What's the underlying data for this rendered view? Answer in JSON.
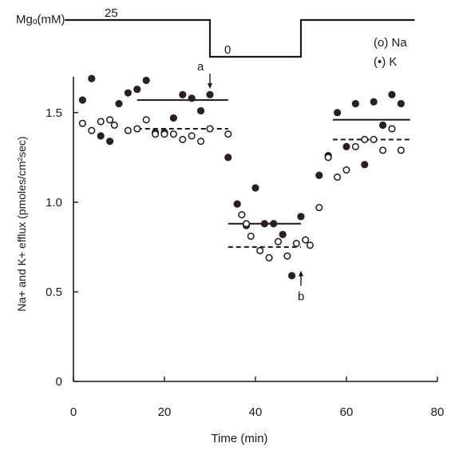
{
  "chart_data": {
    "type": "scatter",
    "title": "",
    "xlabel": "Time (min)",
    "ylabel": "Na+ and K+ efflux (pmoles/cm²sec)",
    "xlim": [
      0,
      80
    ],
    "ylim": [
      0,
      1.7
    ],
    "x_ticks": [
      0,
      20,
      40,
      60,
      80
    ],
    "y_ticks": [
      0,
      0.5,
      1.0,
      1.5
    ],
    "x_tick_labels": [
      "0",
      "20",
      "40",
      "60",
      "80"
    ],
    "y_tick_labels": [
      "0",
      "0.5",
      "1.0",
      "1.5"
    ],
    "grid": false,
    "legend_position": "top-right",
    "legend": [
      {
        "marker": "open-circle",
        "label": "(o) Na"
      },
      {
        "marker": "filled-circle",
        "label": "(•) K"
      }
    ],
    "series": [
      {
        "name": "K",
        "marker": "filled-circle",
        "x": [
          2,
          4,
          6,
          8,
          10,
          12,
          14,
          16,
          18,
          20,
          22,
          24,
          26,
          28,
          30,
          34,
          36,
          38,
          40,
          42,
          44,
          46,
          48,
          50,
          54,
          56,
          58,
          60,
          62,
          64,
          66,
          68,
          70,
          72
        ],
        "y": [
          1.57,
          1.69,
          1.37,
          1.34,
          1.55,
          1.61,
          1.63,
          1.68,
          1.39,
          1.39,
          1.47,
          1.6,
          1.58,
          1.51,
          1.6,
          1.25,
          0.99,
          0.87,
          1.08,
          0.88,
          0.88,
          0.82,
          0.59,
          0.92,
          1.15,
          1.26,
          1.5,
          1.31,
          1.55,
          1.21,
          1.56,
          1.43,
          1.6,
          1.55
        ]
      },
      {
        "name": "Na",
        "marker": "open-circle",
        "x": [
          2,
          4,
          6,
          8,
          9,
          12,
          14,
          16,
          18,
          20,
          22,
          24,
          26,
          28,
          30,
          34,
          37,
          38,
          39,
          41,
          43,
          45,
          47,
          49,
          51,
          52,
          54,
          56,
          58,
          60,
          62,
          64,
          66,
          68,
          70,
          72
        ],
        "y": [
          1.44,
          1.4,
          1.45,
          1.46,
          1.43,
          1.4,
          1.41,
          1.46,
          1.38,
          1.38,
          1.38,
          1.35,
          1.37,
          1.34,
          1.41,
          1.38,
          0.93,
          0.88,
          0.81,
          0.73,
          0.69,
          0.78,
          0.7,
          0.77,
          0.79,
          0.76,
          0.97,
          1.25,
          1.14,
          1.18,
          1.31,
          1.35,
          1.35,
          1.29,
          1.41,
          1.29
        ]
      }
    ],
    "mean_lines": [
      {
        "series": "K",
        "style": "solid",
        "x": [
          14,
          34
        ],
        "y": 1.57
      },
      {
        "series": "Na",
        "style": "dashed",
        "x": [
          14,
          34
        ],
        "y": 1.41
      },
      {
        "series": "K",
        "style": "solid",
        "x": [
          34,
          50
        ],
        "y": 0.88
      },
      {
        "series": "Na",
        "style": "dashed",
        "x": [
          34,
          50
        ],
        "y": 0.75
      },
      {
        "series": "K",
        "style": "solid",
        "x": [
          57,
          74
        ],
        "y": 1.46
      },
      {
        "series": "Na",
        "style": "dashed",
        "x": [
          57,
          74
        ],
        "y": 1.35
      }
    ],
    "mg_trace": {
      "label": "Mgₒ(mM)",
      "segments": [
        {
          "x_start": 2,
          "x_end": 30,
          "level": "high",
          "value_label": "25"
        },
        {
          "x_start": 30,
          "x_end": 50,
          "level": "low",
          "value_label": "0"
        },
        {
          "x_start": 50,
          "x_end": 75,
          "level": "high",
          "value_label": ""
        }
      ]
    },
    "annotations": [
      {
        "text": "a",
        "x": 30,
        "y": 1.61,
        "arrow": "down"
      },
      {
        "text": "b",
        "x": 50,
        "y": 0.56,
        "arrow": "up"
      }
    ]
  }
}
